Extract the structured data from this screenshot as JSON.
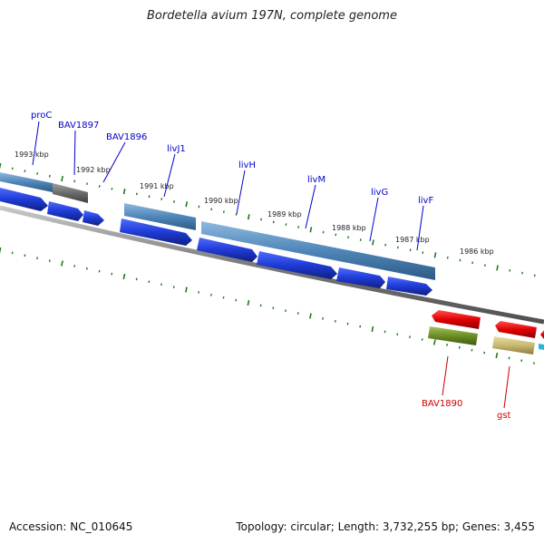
{
  "title": "Bordetella avium 197N, complete genome",
  "footer": {
    "accession_label": "Accession: NC_010645",
    "topology_label": "Topology: circular; Length: 3,732,255 bp; Genes: 3,455"
  },
  "colors": {
    "forward_gene": "#1f3bd6",
    "reverse_gene": "#e00000",
    "operon_bar": "#4f86b8",
    "pseudo_bar": "#6b6b6b",
    "rrna_bar": "#6b8e23",
    "trna_bar": "#c8b870",
    "tick": "#1d7a1d",
    "backbone": "#8a8a8a",
    "label_forward": "#0000cc",
    "label_reverse": "#cc0000"
  },
  "kbp_ticks": [
    "1993 kbp",
    "1992 kbp",
    "1991 kbp",
    "1990 kbp",
    "1989 kbp",
    "1988 kbp",
    "1987 kbp",
    "1986 kbp"
  ],
  "gene_labels": {
    "forward": [
      "proC",
      "BAV1897",
      "BAV1896",
      "livJ1",
      "livH",
      "livM",
      "livG",
      "livF"
    ],
    "reverse": [
      "BAV1890",
      "gst"
    ]
  }
}
